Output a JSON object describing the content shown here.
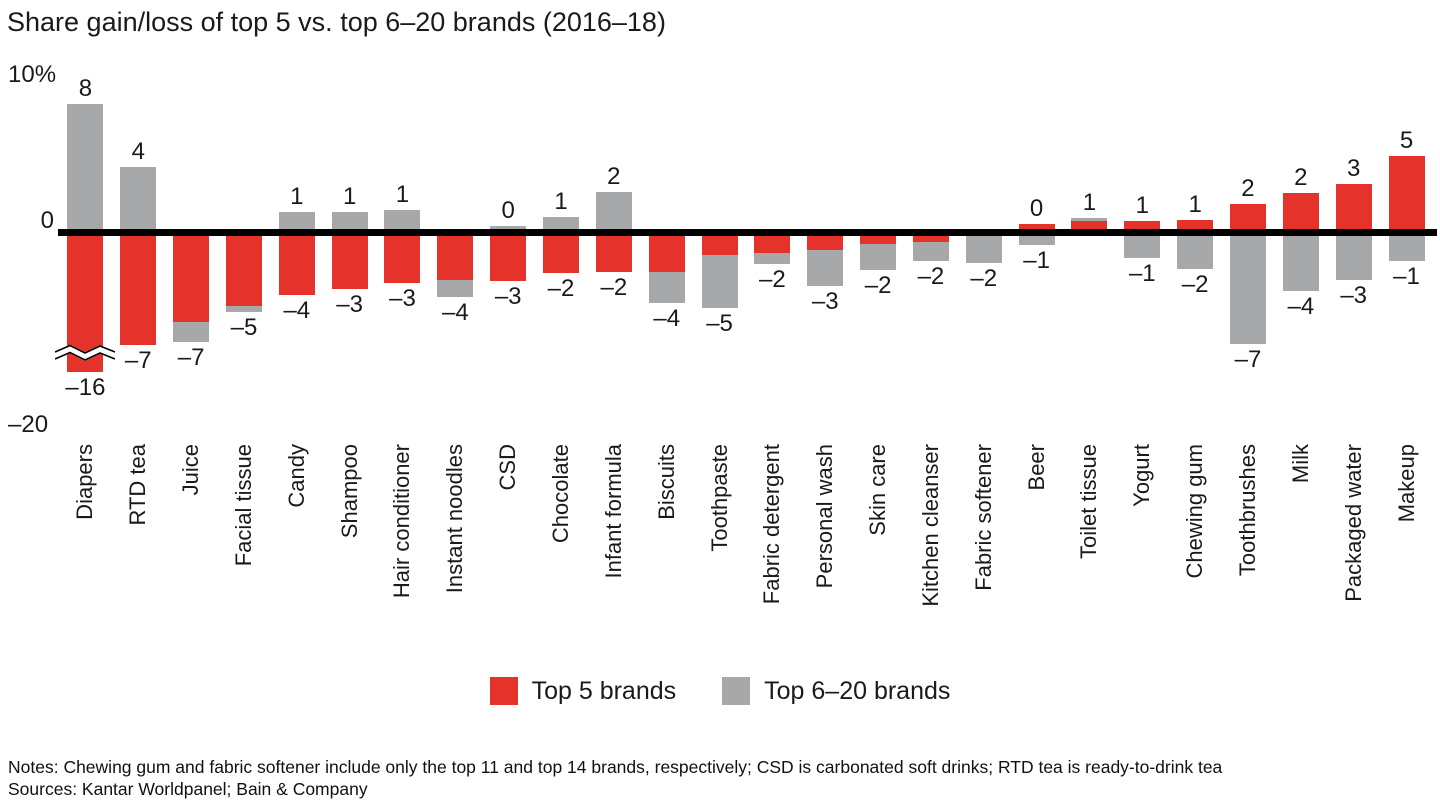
{
  "title": "Share gain/loss of top 5 vs. top 6–20 brands (2016–18)",
  "y_axis": {
    "top_label": "10%",
    "zero_label": "0",
    "bottom_label": "–20"
  },
  "legend": [
    {
      "label": "Top 5 brands",
      "color_key": "top5"
    },
    {
      "label": "Top 6–20 brands",
      "color_key": "top620"
    }
  ],
  "colors": {
    "top5": "#e5322b",
    "top620": "#a7a8aa",
    "axis": "#000000",
    "text": "#1a1a1a"
  },
  "notes": "Notes: Chewing gum and fabric softener include only the top 11 and top 14 brands, respectively; CSD is carbonated soft drinks; RTD tea is ready-to-drink tea",
  "sources": "Sources: Kantar Worldpanel; Bain & Company",
  "chart_data": {
    "type": "bar",
    "stacked": true,
    "unit": "percentage-point share change, 2016–18",
    "ylim": [
      -20,
      10
    ],
    "y_ticks_shown": [
      "10%",
      "0",
      "–20"
    ],
    "grid": false,
    "legend_position": "bottom-center",
    "categories": [
      "Diapers",
      "RTD tea",
      "Juice",
      "Facial tissue",
      "Candy",
      "Shampoo",
      "Hair conditioner",
      "Instant noodles",
      "CSD",
      "Chocolate",
      "Infant formula",
      "Biscuits",
      "Toothpaste",
      "Fabric detergent",
      "Personal wash",
      "Skin care",
      "Kitchen cleanser",
      "Fabric softener",
      "Beer",
      "Toilet tissue",
      "Yogurt",
      "Chewing gum",
      "Toothbrushes",
      "Milk",
      "Packaged water",
      "Makeup"
    ],
    "series": [
      {
        "name": "Top 5 brands",
        "color": "#e5322b",
        "values": [
          -16,
          -7,
          -5.5,
          -4.5,
          -3.8,
          -3.4,
          -3,
          -2.8,
          -2.9,
          -2.4,
          -2.3,
          -2.3,
          -1.2,
          -1.1,
          -0.9,
          -0.5,
          -0.4,
          0,
          0.3,
          0.5,
          0.5,
          0.6,
          1.6,
          2.3,
          2.9,
          4.7
        ]
      },
      {
        "name": "Top 6–20 brands",
        "color": "#a7a8aa",
        "values": [
          8,
          4,
          -1.3,
          -0.4,
          1.1,
          1.1,
          1.2,
          -1.1,
          0.2,
          0.8,
          2.4,
          -2,
          -3.4,
          -0.7,
          -2.3,
          -1.7,
          -1.2,
          -1.7,
          -0.6,
          0.2,
          -1.4,
          -2.1,
          -6.9,
          -3.5,
          -2.8,
          -1.6
        ]
      }
    ],
    "labels_above": [
      "8",
      "4",
      "",
      "",
      "1",
      "1",
      "1",
      "",
      "0",
      "1",
      "2",
      "",
      "",
      "",
      "",
      "",
      "",
      "",
      "0",
      "1",
      "1",
      "1",
      "2",
      "2",
      "3",
      "5"
    ],
    "labels_below": [
      "–16",
      "–7",
      "–7",
      "–5",
      "–4",
      "–3",
      "–3",
      "–4",
      "–3",
      "–2",
      "–2",
      "–4",
      "–5",
      "–2",
      "–3",
      "–2",
      "–2",
      "–2",
      "–1",
      "",
      "–1",
      "–2",
      "–7",
      "–4",
      "–3",
      "–1"
    ],
    "axis_break": {
      "category": "Diapers",
      "series": "Top 5 brands",
      "true_value": -16,
      "drawn_value": -8.7
    }
  }
}
